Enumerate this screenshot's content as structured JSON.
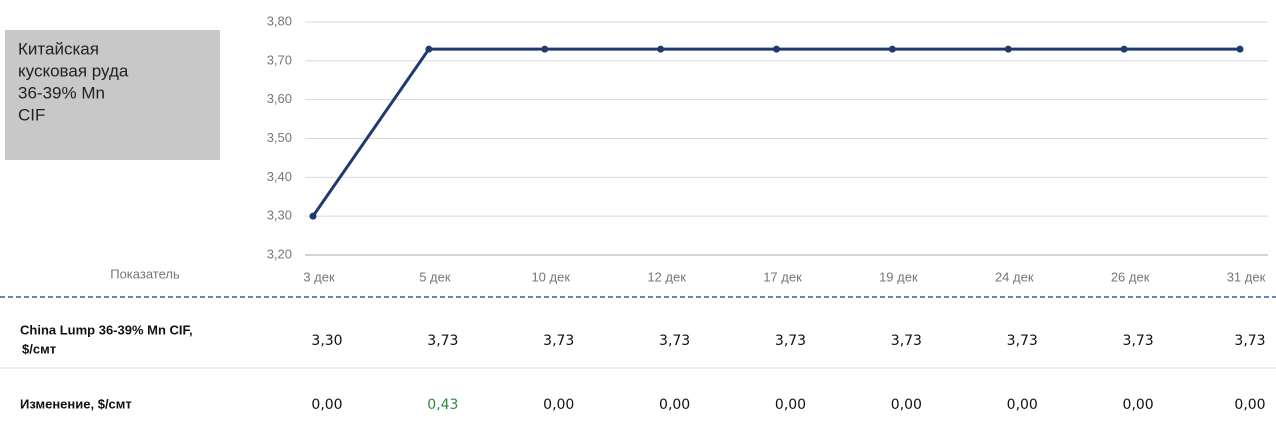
{
  "chart_data": {
    "type": "line",
    "title": [
      "Китайская",
      "кусковая руда",
      "36-39% Mn",
      "CIF"
    ],
    "categories": [
      "3 дек",
      "5 дек",
      "10 дек",
      "12 дек",
      "17 дек",
      "19 дек",
      "24 дек",
      "26 дек",
      "31 дек"
    ],
    "values": [
      3.3,
      3.73,
      3.73,
      3.73,
      3.73,
      3.73,
      3.73,
      3.73,
      3.73
    ],
    "value_labels": [
      "3,30",
      "3,73",
      "3,73",
      "3,73",
      "3,73",
      "3,73",
      "3,73",
      "3,73",
      "3,73"
    ],
    "color": "#1f3a6e",
    "ylim": [
      3.2,
      3.8
    ],
    "yticks": [
      {
        "value": 3.2,
        "label": "3,20"
      },
      {
        "value": 3.3,
        "label": "3,30"
      },
      {
        "value": 3.4,
        "label": "3,40"
      },
      {
        "value": 3.5,
        "label": "3,50"
      },
      {
        "value": 3.6,
        "label": "3,60"
      },
      {
        "value": 3.7,
        "label": "3,70"
      },
      {
        "value": 3.8,
        "label": "3,80"
      }
    ],
    "grid": true
  },
  "table": {
    "header": "Показатель",
    "row_labels": [
      [
        "China Lump 36-39% Mn CIF,",
        "$/смт"
      ],
      [
        "Изменение, $/смт"
      ]
    ],
    "change": [
      0,
      0.43,
      0,
      0,
      0,
      0,
      0,
      0,
      0
    ],
    "change_labels": [
      "0,00",
      "0,43",
      "0,00",
      "0,00",
      "0,00",
      "0,00",
      "0,00",
      "0,00",
      "0,00"
    ]
  }
}
